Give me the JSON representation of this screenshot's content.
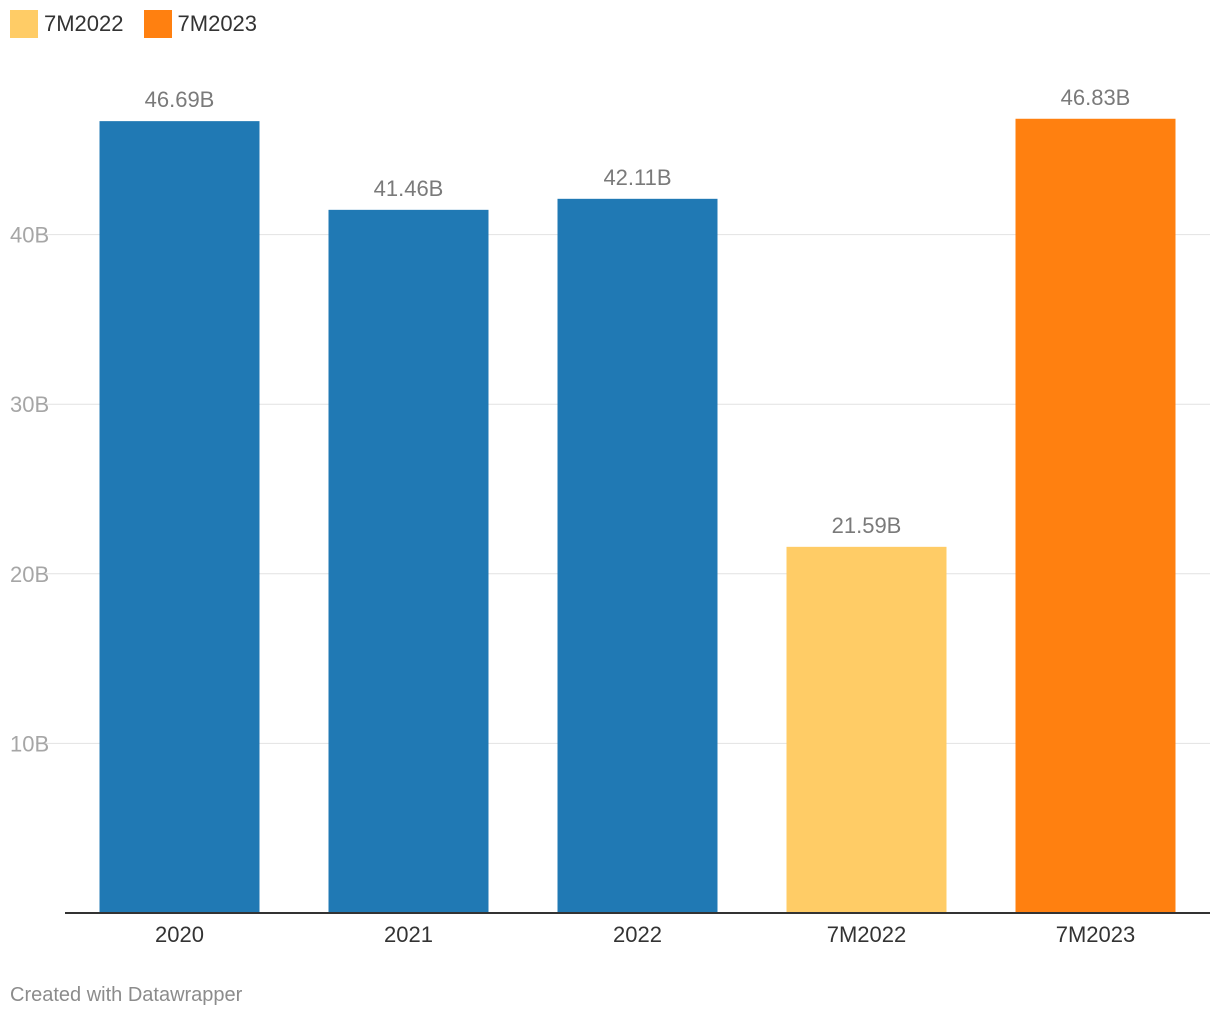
{
  "legend": [
    {
      "label": "7M2022",
      "color": "#ffcc66"
    },
    {
      "label": "7M2023",
      "color": "#ff8010"
    }
  ],
  "chart_data": {
    "type": "bar",
    "categories": [
      "2020",
      "2021",
      "2022",
      "7M2022",
      "7M2023"
    ],
    "values": [
      46.69,
      41.46,
      42.11,
      21.59,
      46.83
    ],
    "value_labels": [
      "46.69B",
      "41.46B",
      "42.11B",
      "21.59B",
      "46.83B"
    ],
    "colors": [
      "#2079b4",
      "#2079b4",
      "#2079b4",
      "#ffcc66",
      "#ff8010"
    ],
    "ylim": [
      0,
      50
    ],
    "yticks": [
      10,
      20,
      30,
      40
    ],
    "ytick_labels": [
      "10B",
      "20B",
      "30B",
      "40B"
    ],
    "grid": true,
    "legend_position": "top-left",
    "xlabel": "",
    "ylabel": ""
  },
  "footer": {
    "credit": "Created with Datawrapper"
  }
}
